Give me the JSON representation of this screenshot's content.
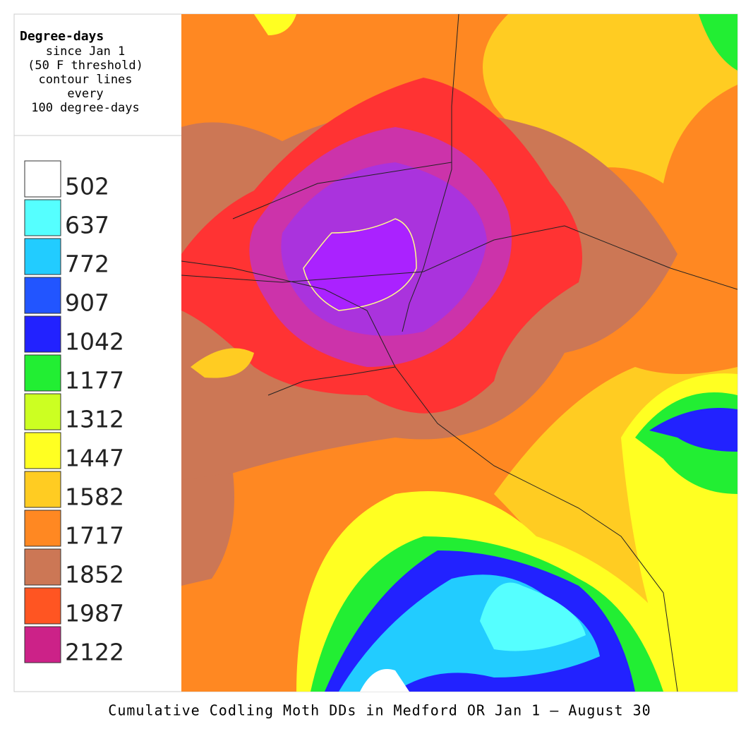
{
  "legend": {
    "title": "Degree-days",
    "subtitle_lines": [
      "since Jan 1",
      "(50 F threshold)",
      "contour lines",
      "every",
      "100 degree-days"
    ],
    "items": [
      {
        "label": "502",
        "color": "#ffffff"
      },
      {
        "label": "637",
        "color": "#55ffff"
      },
      {
        "label": "772",
        "color": "#22ccff"
      },
      {
        "label": "907",
        "color": "#2255ff"
      },
      {
        "label": "1042",
        "color": "#2222ff"
      },
      {
        "label": "1177",
        "color": "#22ee33"
      },
      {
        "label": "1312",
        "color": "#ccff22"
      },
      {
        "label": "1447",
        "color": "#ffff22"
      },
      {
        "label": "1582",
        "color": "#ffcc22"
      },
      {
        "label": "1717",
        "color": "#ff8822"
      },
      {
        "label": "1852",
        "color": "#cc7755"
      },
      {
        "label": "1987",
        "color": "#ff5522"
      },
      {
        "label": "2122",
        "color": "#cc2288"
      }
    ]
  },
  "caption": "Cumulative Codling Moth DDs in Medford OR Jan 1 — August 30"
}
